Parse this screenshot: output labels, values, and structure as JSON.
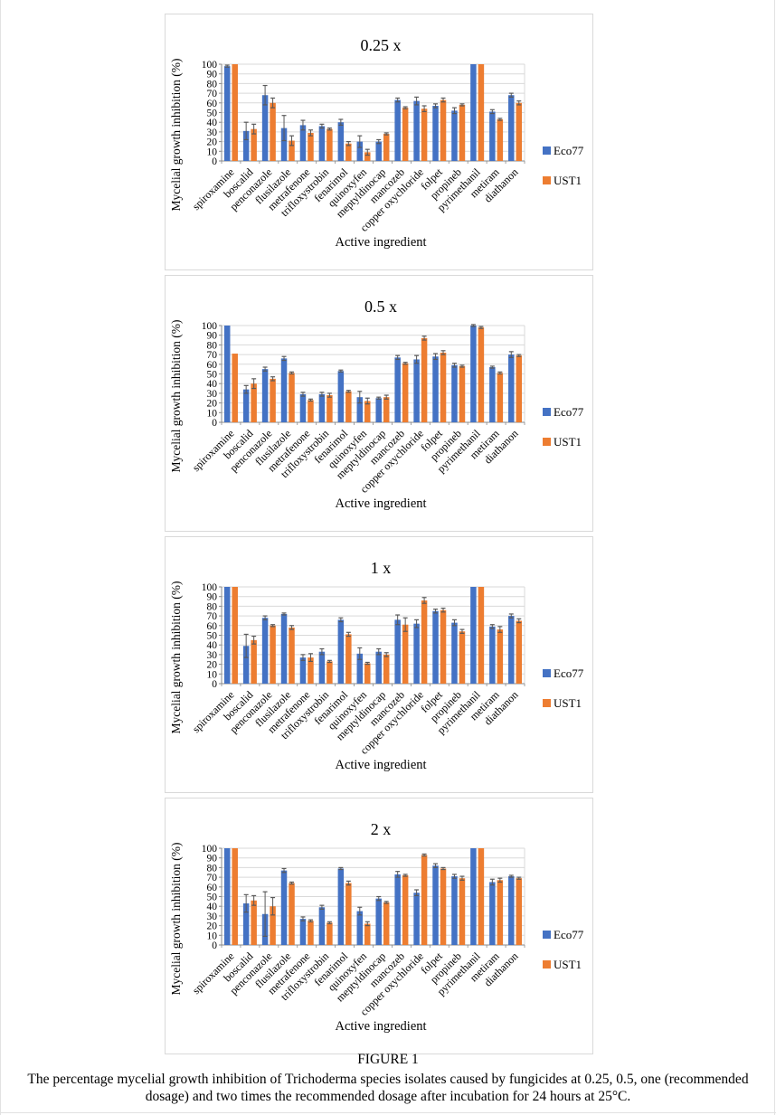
{
  "caption": {
    "label": "FIGURE 1",
    "line1": "The percentage mycelial growth inhibition of Trichoderma species isolates caused by fungicides at 0.25, 0.5, one (recommended",
    "line2": "dosage) and two times the recommended dosage after incubation for 24 hours at 25°C."
  },
  "colors": {
    "eco77_blue": "#4472C4",
    "ust1_orange": "#ED7D31",
    "gridline": "#d9d9d9",
    "axis": "#898989",
    "error_bar": "#595959"
  },
  "chart_data": [
    {
      "type": "bar",
      "title": "0.25 x",
      "xlabel": "Active ingredient",
      "ylabel": "Mycelial growth inhibition (%)",
      "ylim": [
        0,
        100
      ],
      "ytick_step": 10,
      "grid": true,
      "legend_position": "right",
      "categories": [
        "spiroxamine",
        "boscalid",
        "penconazole",
        "flusilazole",
        "metrafenone",
        "trifloxystrobin",
        "fenarimol",
        "quinoxyfen",
        "meptyldinocap",
        "mancozeb",
        "copper oxychloride",
        "folpet",
        "propineb",
        "pyrimethanil",
        "metiram",
        "diathanon"
      ],
      "series": [
        {
          "name": "Eco77",
          "color": "#4472C4",
          "values": [
            98,
            31,
            68,
            34,
            37,
            36,
            40,
            20,
            20,
            63,
            62,
            57,
            52,
            100,
            51,
            68
          ],
          "errors": [
            1,
            9,
            10,
            13,
            5,
            2,
            3,
            6,
            2,
            2,
            4,
            2,
            3,
            0,
            2,
            2
          ]
        },
        {
          "name": "UST1",
          "color": "#ED7D31",
          "values": [
            100,
            33,
            60,
            21,
            29,
            33,
            18,
            9,
            28,
            55,
            54,
            63,
            58,
            100,
            43,
            60
          ],
          "errors": [
            0,
            5,
            5,
            5,
            3,
            1,
            2,
            3,
            1,
            1,
            3,
            2,
            1,
            0,
            1,
            2
          ]
        }
      ]
    },
    {
      "type": "bar",
      "title": "0.5 x",
      "xlabel": "Active ingredient",
      "ylabel": "Mycelial growth inhibition (%)",
      "ylim": [
        0,
        100
      ],
      "ytick_step": 10,
      "grid": true,
      "legend_position": "right",
      "categories": [
        "spiroxamine",
        "boscalid",
        "penconazole",
        "flusilazole",
        "metrafenone",
        "trifloxystrobin",
        "fenarimol",
        "quinoxyfen",
        "meptyldinocap",
        "mancozeb",
        "copper oxychloride",
        "folpet",
        "propineb",
        "pyrimethanil",
        "metiram",
        "diathanon"
      ],
      "series": [
        {
          "name": "Eco77",
          "color": "#4472C4",
          "values": [
            100,
            34,
            55,
            66,
            29,
            29,
            53,
            26,
            25,
            67,
            65,
            68,
            59,
            100,
            57,
            70
          ],
          "errors": [
            0,
            4,
            2,
            2,
            2,
            2,
            1,
            6,
            1,
            2,
            4,
            3,
            2,
            1,
            1,
            3
          ]
        },
        {
          "name": "UST1",
          "color": "#ED7D31",
          "values": [
            71,
            40,
            45,
            51,
            23,
            28,
            32,
            22,
            26,
            61,
            87,
            72,
            58,
            98,
            51,
            69
          ],
          "errors": [
            0,
            5,
            2,
            1,
            1,
            2,
            1,
            3,
            2,
            1,
            2,
            2,
            1,
            1,
            1,
            1
          ]
        }
      ]
    },
    {
      "type": "bar",
      "title": "1 x",
      "xlabel": "Active ingredient",
      "ylabel": "Mycelial growth inhibition (%)",
      "ylim": [
        0,
        100
      ],
      "ytick_step": 10,
      "grid": true,
      "legend_position": "right",
      "categories": [
        "spiroxamine",
        "boscalid",
        "penconazole",
        "flusilazole",
        "metrafenone",
        "trifloxystrobin",
        "fenarimol",
        "quinoxyfen",
        "meptyldinocap",
        "mancozeb",
        "copper oxychloride",
        "folpet",
        "propineb",
        "pyrimethanil",
        "metiram",
        "diathanon"
      ],
      "series": [
        {
          "name": "Eco77",
          "color": "#4472C4",
          "values": [
            100,
            39,
            68,
            72,
            27,
            33,
            66,
            31,
            33,
            66,
            62,
            75,
            63,
            100,
            59,
            70
          ],
          "errors": [
            0,
            12,
            2,
            1,
            3,
            3,
            2,
            6,
            3,
            5,
            4,
            2,
            3,
            0,
            2,
            2
          ]
        },
        {
          "name": "UST1",
          "color": "#ED7D31",
          "values": [
            100,
            45,
            60,
            58,
            27,
            23,
            51,
            21,
            30,
            61,
            86,
            76,
            54,
            100,
            56,
            65
          ],
          "errors": [
            0,
            4,
            1,
            2,
            4,
            1,
            2,
            1,
            2,
            7,
            3,
            2,
            2,
            0,
            3,
            2
          ]
        }
      ]
    },
    {
      "type": "bar",
      "title": "2 x",
      "xlabel": "Active ingredient",
      "ylabel": "Mycelial growth inhibition (%)",
      "ylim": [
        0,
        100
      ],
      "ytick_step": 10,
      "grid": true,
      "legend_position": "right",
      "categories": [
        "spiroxamine",
        "boscalid",
        "penconazole",
        "flusilazole",
        "metrafenone",
        "trifloxystrobin",
        "fenarimol",
        "quinoxyfen",
        "meptyldinocap",
        "mancozeb",
        "copper oxychloride",
        "folpet",
        "propineb",
        "pyrimethanil",
        "metiram",
        "diathanon"
      ],
      "series": [
        {
          "name": "Eco77",
          "color": "#4472C4",
          "values": [
            100,
            43,
            32,
            77,
            27,
            39,
            79,
            35,
            48,
            73,
            54,
            82,
            71,
            100,
            65,
            71
          ],
          "errors": [
            0,
            9,
            23,
            2,
            2,
            2,
            1,
            4,
            2,
            3,
            3,
            2,
            2,
            0,
            3,
            1
          ]
        },
        {
          "name": "UST1",
          "color": "#ED7D31",
          "values": [
            100,
            46,
            40,
            64,
            25,
            23,
            64,
            22,
            44,
            72,
            93,
            79,
            69,
            100,
            67,
            69
          ],
          "errors": [
            0,
            5,
            9,
            1,
            1,
            1,
            2,
            2,
            1,
            1,
            1,
            1,
            2,
            0,
            2,
            1
          ]
        }
      ]
    }
  ]
}
